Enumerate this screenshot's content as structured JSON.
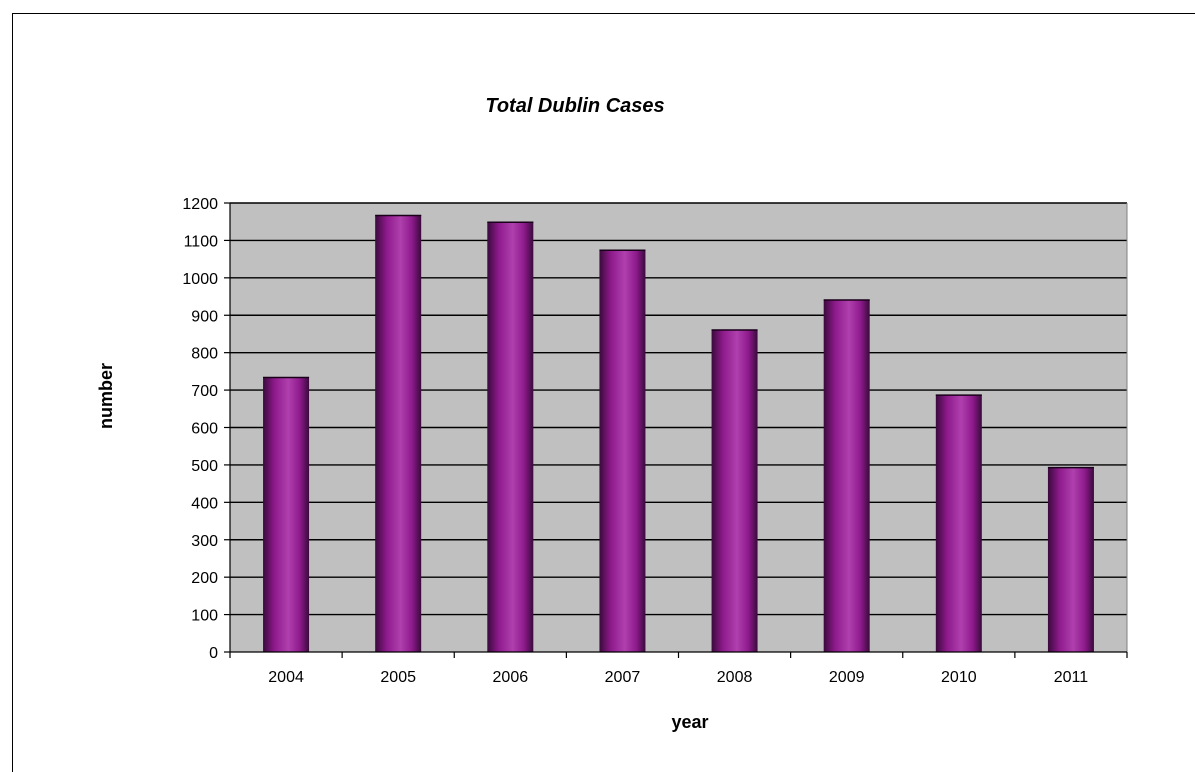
{
  "chart_data": {
    "type": "bar",
    "title": "Total Dublin Cases",
    "xlabel": "year",
    "ylabel": "number",
    "categories": [
      "2004",
      "2005",
      "2006",
      "2007",
      "2008",
      "2009",
      "2010",
      "2011"
    ],
    "values": [
      735,
      1168,
      1150,
      1075,
      862,
      942,
      688,
      494
    ],
    "ylim": [
      0,
      1200
    ],
    "yticks": [
      0,
      100,
      200,
      300,
      400,
      500,
      600,
      700,
      800,
      900,
      1000,
      1100,
      1200
    ],
    "ytick_labels": [
      "0",
      "100",
      "200",
      "300",
      "400",
      "500",
      "600",
      "700",
      "800",
      "900",
      "1000",
      "1100",
      "1200"
    ],
    "grid": true,
    "legend": false,
    "colors": {
      "bar_dark": "#3a0a3c",
      "bar_mid": "#8e1a8c",
      "bar_light": "#b040ae",
      "plot_background": "#c0c0c0",
      "gridline": "#000000"
    }
  }
}
